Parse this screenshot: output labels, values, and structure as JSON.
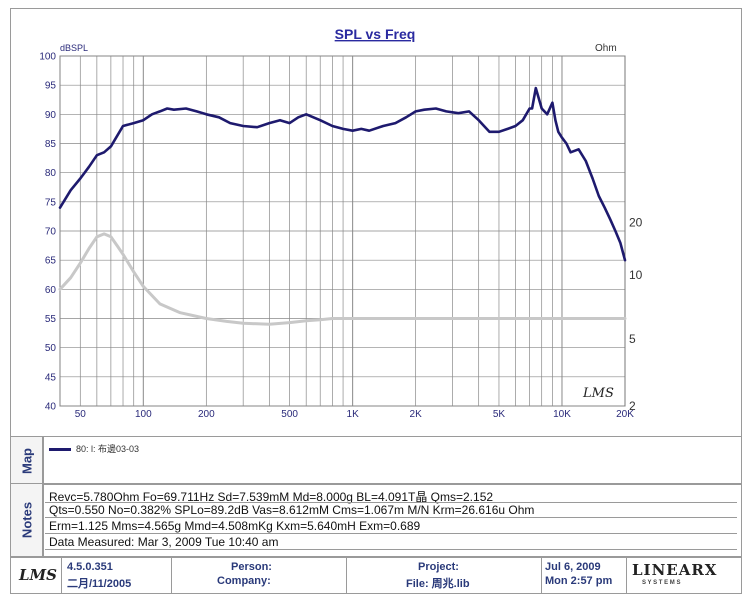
{
  "chart_data": {
    "type": "line",
    "title": "SPL vs Freq",
    "ylabel_left": "dBSPL",
    "ylabel_right": "Ohm",
    "x_scale": "log",
    "xlim": [
      40,
      20000
    ],
    "ylim": [
      40,
      100
    ],
    "y_ticks": [
      40,
      45,
      50,
      55,
      60,
      65,
      70,
      75,
      80,
      85,
      90,
      95,
      100
    ],
    "x_tick_labels": [
      {
        "v": 50,
        "label": "50"
      },
      {
        "v": 100,
        "label": "100"
      },
      {
        "v": 200,
        "label": "200"
      },
      {
        "v": 500,
        "label": "500"
      },
      {
        "v": 1000,
        "label": "1K"
      },
      {
        "v": 2000,
        "label": "2K"
      },
      {
        "v": 5000,
        "label": "5K"
      },
      {
        "v": 10000,
        "label": "10K"
      },
      {
        "v": 20000,
        "label": "20K"
      }
    ],
    "right_ticks": [
      {
        "label": "20",
        "at_left_db": 71.5
      },
      {
        "label": "10",
        "at_left_db": 62.5
      },
      {
        "label": "5",
        "at_left_db": 51.5
      },
      {
        "label": "2",
        "at_left_db": 40
      }
    ],
    "grid": true,
    "series": [
      {
        "name": "80: l: 布邊03-03",
        "color": "#1e1a6e",
        "x": [
          40,
          45,
          50,
          55,
          60,
          65,
          70,
          80,
          90,
          100,
          110,
          120,
          130,
          140,
          160,
          180,
          200,
          230,
          260,
          300,
          350,
          400,
          450,
          500,
          550,
          600,
          700,
          800,
          900,
          1000,
          1100,
          1200,
          1400,
          1600,
          1800,
          2000,
          2200,
          2500,
          2800,
          3200,
          3600,
          4000,
          4500,
          5000,
          5500,
          6000,
          6500,
          7000,
          7200,
          7500,
          8000,
          8500,
          9000,
          9300,
          9600,
          10000,
          10500,
          11000,
          12000,
          13000,
          14000,
          15000,
          16000,
          17000,
          18000,
          19000,
          20000
        ],
        "y": [
          74,
          77,
          79,
          81,
          83,
          83.5,
          84.5,
          88,
          88.5,
          89,
          90,
          90.5,
          91,
          90.8,
          91,
          90.5,
          90,
          89.5,
          88.5,
          88,
          87.8,
          88.5,
          89,
          88.5,
          89.5,
          90,
          89,
          88,
          87.5,
          87.2,
          87.5,
          87.2,
          88,
          88.5,
          89.5,
          90.5,
          90.8,
          91,
          90.5,
          90.2,
          90.5,
          89,
          87,
          87,
          87.5,
          88,
          89,
          91,
          91,
          94.5,
          91,
          90,
          92,
          89,
          87,
          86,
          85,
          83.5,
          84,
          82,
          79,
          76,
          74,
          72,
          70,
          68,
          65
        ]
      },
      {
        "name": "impedance",
        "color": "#c8c8c8",
        "x": [
          40,
          45,
          50,
          55,
          60,
          65,
          70,
          75,
          80,
          90,
          100,
          120,
          150,
          200,
          250,
          300,
          400,
          500,
          600,
          700,
          800,
          1000,
          2000,
          5000,
          10000,
          20000
        ],
        "y": [
          60,
          62,
          64.5,
          67,
          69,
          69.5,
          69,
          67.5,
          66,
          63,
          60.5,
          57.5,
          56,
          55,
          54.5,
          54.2,
          54,
          54.3,
          54.6,
          54.8,
          55,
          55,
          55,
          55,
          55,
          55
        ]
      }
    ]
  },
  "side_labels": {
    "map": "Map",
    "notes": "Notes"
  },
  "legend": {
    "label": "80: l: 布邊03-03"
  },
  "notes": {
    "line1": "Revc=5.780Ohm  Fo=69.711Hz  Sd=7.539mM  Md=8.000g   BL=4.091T晶  Qms=2.152",
    "line2": "Qts=0.550  No=0.382%  SPLo=89.2dB  Vas=8.612mM  Cms=1.067m M/N  Krm=26.616u Ohm",
    "line3": "Erm=1.125  Mms=4.565g  Mmd=4.508mKg  Kxm=5.640mH  Exm=0.689",
    "line4": "Data Measured:  Mar  3, 2009   Tue 10:40 am"
  },
  "footer": {
    "logo": "LMS",
    "version": "4.5.0.351",
    "version_date": "二月/11/2005",
    "person_label": "Person:",
    "company_label": "Company:",
    "project_label": "Project:",
    "file_label": "File: 周兆.lib",
    "date": "Jul  6, 2009",
    "time": "Mon  2:57 pm",
    "brand": "LINEARX",
    "brand_sub": "S Y S T E M S"
  },
  "watermark": "LMS"
}
